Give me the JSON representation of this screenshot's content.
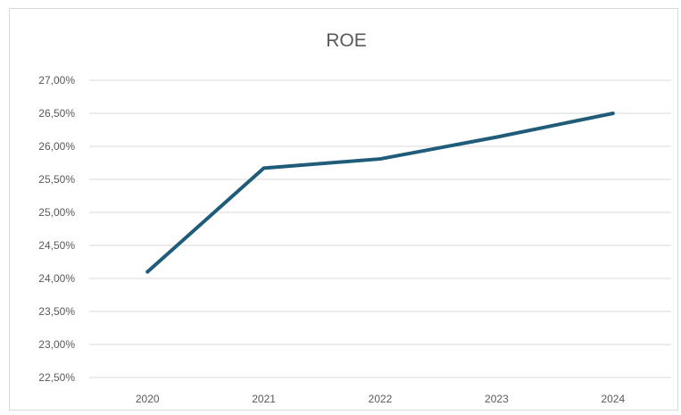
{
  "chart_data": {
    "type": "line",
    "title": "ROE",
    "xlabel": "",
    "ylabel": "",
    "categories": [
      "2020",
      "2021",
      "2022",
      "2023",
      "2024"
    ],
    "series": [
      {
        "values": [
          24.1,
          25.67,
          25.81,
          26.14,
          26.5
        ],
        "color": "#1f5c7a"
      }
    ],
    "ylim": [
      22.5,
      27.0
    ],
    "y_ticks": [
      "22,50%",
      "23,00%",
      "23,50%",
      "24,00%",
      "24,50%",
      "25,00%",
      "25,50%",
      "26,00%",
      "26,50%",
      "27,00%"
    ],
    "grid": true,
    "legend": "none"
  }
}
